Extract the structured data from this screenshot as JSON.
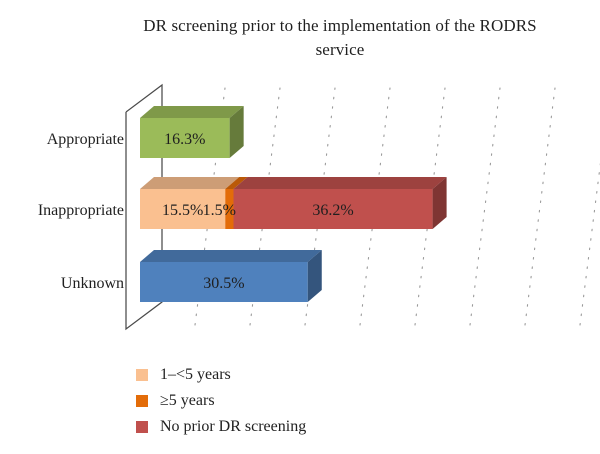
{
  "chart_data": {
    "type": "bar",
    "orientation": "horizontal",
    "stacked": true,
    "three_d": true,
    "title": "DR screening prior to the implementation of the RODRS service",
    "title_lines": [
      "DR screening prior to the implementation of the RODRS",
      "service"
    ],
    "categories": [
      "Appropriate",
      "Inappropriate",
      "Unknown"
    ],
    "xlim": [
      0,
      80
    ],
    "grid": true,
    "legend_position": "bottom-left",
    "series": [
      {
        "name": "1–<5 years",
        "values": [
          16.3,
          15.5,
          30.5
        ],
        "labels": [
          "16.3%",
          "15.5%",
          "30.5%"
        ],
        "point_colors": [
          "#9BBB59",
          "#FAC090",
          "#4F81BD"
        ],
        "in_legend": true
      },
      {
        "name": "≥5 years",
        "values": [
          0,
          1.5,
          0
        ],
        "labels": [
          "",
          "1.5%",
          ""
        ],
        "point_colors": [
          "#E36C09",
          "#E36C09",
          "#E36C09"
        ],
        "in_legend": true
      },
      {
        "name": "No prior DR screening",
        "values": [
          0,
          36.2,
          0
        ],
        "labels": [
          "",
          "36.2%",
          ""
        ],
        "point_colors": [
          "#C0504D",
          "#C0504D",
          "#C0504D"
        ],
        "in_legend": true
      }
    ]
  },
  "legend": {
    "items": [
      {
        "label": "1–<5 years",
        "color": "#FAC090"
      },
      {
        "label": "≥5 years",
        "color": "#E36C09"
      },
      {
        "label": "No prior DR screening",
        "color": "#C0504D"
      }
    ]
  }
}
